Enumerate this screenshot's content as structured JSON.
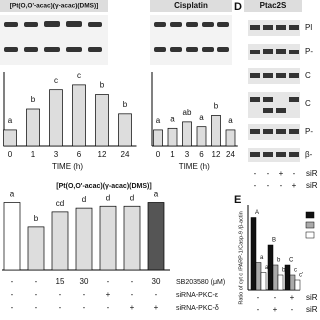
{
  "panel_c": {
    "headers": [
      "[Pt(O,O'-acac)(γ-acac)(DMS)]",
      "Cisplatin"
    ],
    "chart1": {
      "categories": [
        "0",
        "1",
        "3",
        "6",
        "12",
        "24"
      ],
      "values": [
        1,
        2.3,
        3.5,
        3.8,
        3.2,
        2
      ],
      "letters": [
        "a",
        "b",
        "c",
        "c",
        "b",
        "b"
      ],
      "ylim": [
        0,
        4.6
      ],
      "xlabel": "TIME (h)"
    },
    "chart2": {
      "categories": [
        "0",
        "1",
        "3",
        "6",
        "12",
        "24"
      ],
      "values": [
        1,
        1.1,
        1.5,
        1.2,
        1.9,
        1
      ],
      "letters": [
        "a",
        "a",
        "ab",
        "a",
        "b",
        "a"
      ],
      "ylim": [
        0,
        4.6
      ],
      "xlabel": "TIME (h)"
    }
  },
  "panel_d": {
    "label": "D",
    "header": "Ptac2S",
    "rows": [
      "Pl",
      "P-",
      "C",
      "C",
      "P-",
      "β-"
    ],
    "treatments": [
      [
        "-",
        "-",
        "+",
        "-"
      ],
      [
        "-",
        "-",
        "-",
        "+"
      ]
    ],
    "treatment_labels": [
      "siR",
      "siR"
    ]
  },
  "panel_f": {
    "title": "[Pt(O,O'-acac)(γ-acac)(DMS)]",
    "values": [
      3.6,
      2.3,
      3.1,
      3.3,
      3.4,
      3.4,
      3.6
    ],
    "letters": [
      "a",
      "b",
      "cd",
      "d",
      "d",
      "d",
      "a"
    ],
    "ylim": [
      0,
      4
    ],
    "conditions": [
      [
        "-",
        "-",
        "15",
        "30",
        "-",
        "-",
        "30"
      ],
      [
        "-",
        "-",
        "-",
        "-",
        "+",
        "-",
        "-"
      ],
      [
        "-",
        "-",
        "-",
        "-",
        "-",
        "+",
        "+"
      ]
    ],
    "condition_labels": [
      "SB203580 (μM)",
      "siRNA-PKC-ε",
      "siRNA-PKC-δ"
    ]
  },
  "panel_e": {
    "label": "E",
    "ylabel": "Ratio of cyt c /PARP-1/Casp-9 /β-actin",
    "series": [
      {
        "color": "#111111",
        "values": [
          1.45,
          0.9,
          0.5
        ],
        "letters": [
          "A",
          "B",
          "C"
        ]
      },
      {
        "color": "#aaaaaa",
        "values": [
          0.55,
          0.5,
          0.3
        ],
        "letters": [
          "a",
          "b",
          "c"
        ]
      },
      {
        "color": "#ffffff",
        "values": [
          0.35,
          0.3,
          0.2
        ],
        "letters": [
          "a'",
          "b'",
          "c'"
        ]
      }
    ],
    "ylim": [
      0,
      1.7
    ],
    "treatments": [
      [
        "-",
        "-",
        "+"
      ],
      [
        "-",
        "+",
        "-"
      ]
    ],
    "treatment_labels": [
      "siR",
      "siR"
    ]
  }
}
